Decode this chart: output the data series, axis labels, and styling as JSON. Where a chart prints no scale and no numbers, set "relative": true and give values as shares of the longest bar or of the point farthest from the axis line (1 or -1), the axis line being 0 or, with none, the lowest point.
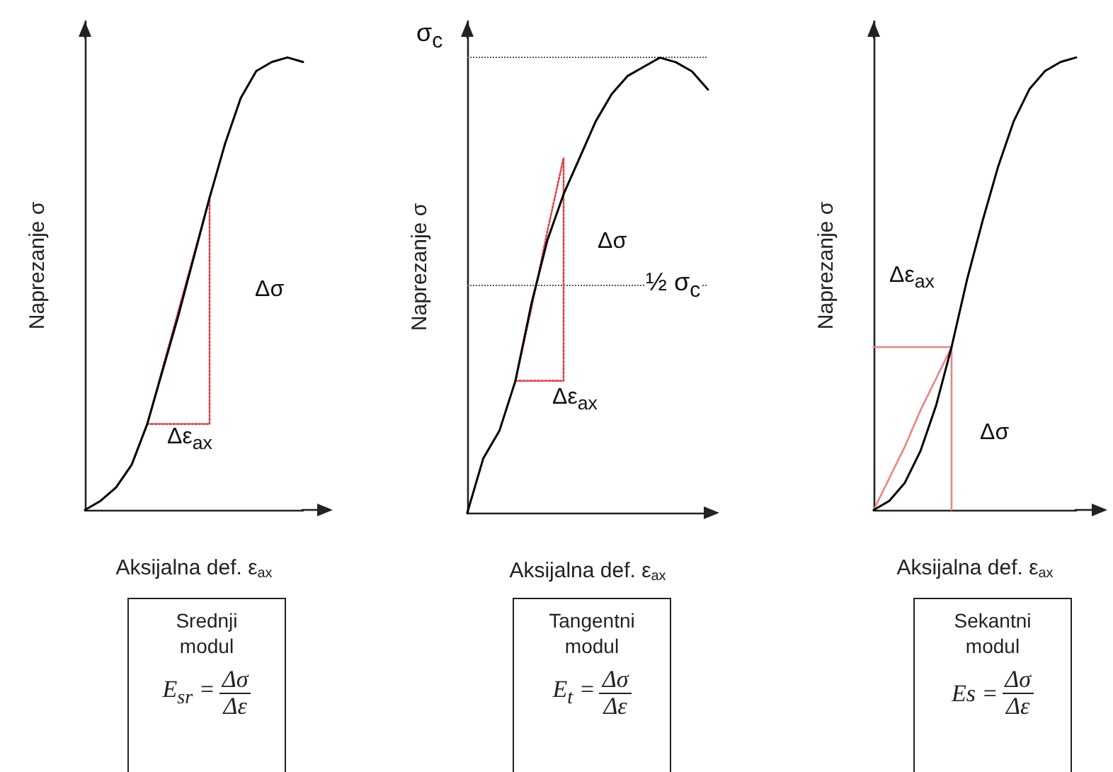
{
  "chart_data": [
    {
      "type": "line",
      "relative": true,
      "tick_labels": false,
      "marker": "none",
      "ylabel": "Naprezanje σ",
      "xlabel": "Aksijalna def. ε$_{ax}$",
      "categories": [
        null,
        null,
        null,
        null,
        null,
        null,
        null,
        null,
        null,
        null,
        null,
        null,
        null,
        null,
        null
      ],
      "series": [
        {
          "color": "#000000",
          "line_style": "solid",
          "values": [
            0,
            0.02,
            0.05,
            0.1,
            0.19,
            0.31,
            0.43,
            0.56,
            0.69,
            0.81,
            0.91,
            0.97,
            0.99,
            1,
            0.99
          ]
        },
        {
          "color": "#e0404a",
          "line_style": "dotted",
          "values": [
            null,
            null,
            null,
            null,
            0.19,
            0.315,
            0.44,
            0.565,
            0.69,
            null,
            null,
            null,
            null,
            null,
            null
          ]
        },
        {
          "type": "step",
          "color": "#e0404a",
          "line_style": "dotted",
          "values": [
            null,
            null,
            null,
            null,
            0.19,
            0.19,
            0.19,
            0.19,
            0.69,
            null,
            null,
            null,
            null,
            null,
            null
          ]
        }
      ],
      "annotations": [
        "Δσ",
        "Δε$_{ax}$",
        "Srednji modul",
        "E$_{sr}$ =",
        "Δσ",
        "Δε"
      ]
    },
    {
      "type": "line",
      "relative": true,
      "tick_labels": false,
      "marker": "none",
      "ylabel": "Naprezanje σ",
      "xlabel": "Aksijalna def. ε$_{ax}$",
      "categories": [
        null,
        null,
        null,
        null,
        null,
        null,
        null,
        null,
        null,
        null,
        null,
        null,
        null,
        null,
        null,
        null
      ],
      "series": [
        {
          "color": "#000000",
          "line_style": "solid",
          "values": [
            0,
            0.12,
            0.18,
            0.29,
            0.46,
            0.6,
            0.7,
            0.78,
            0.86,
            0.92,
            0.96,
            0.98,
            1,
            0.99,
            0.97,
            0.93
          ]
        },
        {
          "color": "#e0404a",
          "line_style": "dotted",
          "values": [
            null,
            null,
            null,
            0.29,
            0.45,
            0.62,
            0.78,
            null,
            null,
            null,
            null,
            null,
            null,
            null,
            null,
            null
          ]
        },
        {
          "type": "step",
          "color": "#e0404a",
          "line_style": "dotted",
          "values": [
            null,
            null,
            null,
            0.29,
            0.29,
            0.29,
            0.78,
            null,
            null,
            null,
            null,
            null,
            null,
            null,
            null,
            null
          ]
        }
      ],
      "ref_lines": [
        {
          "axis": "y",
          "value": 1,
          "label": "σ$_{c}$",
          "color": "#555555",
          "line_style": "dotted"
        },
        {
          "axis": "y",
          "value": 0.5,
          "label": "½ σ$_{c}$",
          "color": "#555555",
          "line_style": "dotted"
        }
      ],
      "annotations": [
        "Δσ",
        "Δε$_{ax}$",
        "Tangentni modul",
        "E$_{t}$ =",
        "Δσ",
        "Δε"
      ]
    },
    {
      "type": "line",
      "relative": true,
      "tick_labels": false,
      "marker": "none",
      "ylabel": "Naprezanje σ",
      "xlabel": "Aksijalna def. ε$_{ax}$",
      "categories": [
        null,
        null,
        null,
        null,
        null,
        null,
        null,
        null,
        null,
        null,
        null,
        null,
        null,
        null
      ],
      "series": [
        {
          "color": "#000000",
          "line_style": "solid",
          "values": [
            0,
            0.02,
            0.06,
            0.13,
            0.23,
            0.36,
            0.51,
            0.64,
            0.76,
            0.86,
            0.93,
            0.97,
            0.99,
            1
          ]
        },
        {
          "color": "#f08080",
          "line_style": "solid",
          "values": [
            0,
            0.07,
            0.14,
            0.22,
            0.29,
            0.36,
            null,
            null,
            null,
            null,
            null,
            null,
            null,
            null
          ]
        },
        {
          "type": "step",
          "color": "#f08080",
          "line_style": "solid",
          "values": [
            0.36,
            0.36,
            0.36,
            0.36,
            0.36,
            0,
            null,
            null,
            null,
            null,
            null,
            null,
            null,
            null
          ]
        }
      ],
      "annotations": [
        "Δε$_{ax}$",
        "Δσ",
        "Sekantni modul",
        "Es =",
        "Δσ",
        "Δε"
      ]
    }
  ]
}
